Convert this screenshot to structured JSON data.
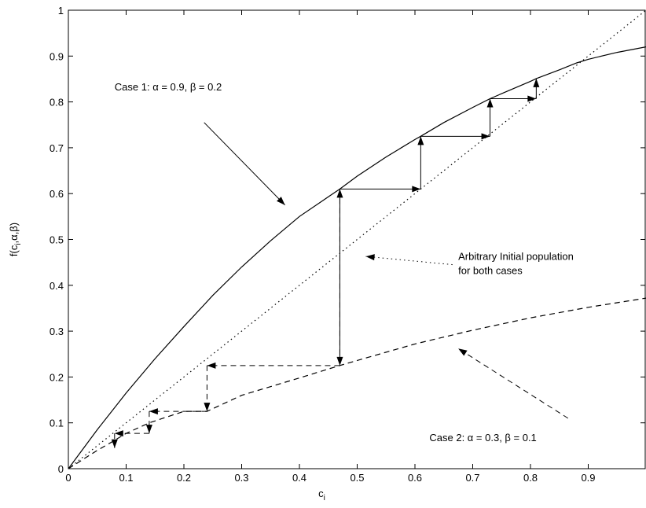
{
  "chart_data": {
    "type": "line",
    "xlabel": "c",
    "xlabel_sub": "i",
    "ylabel": "f(c",
    "ylabel_sub": "i",
    "ylabel_rest": ",α,β)",
    "xlim": [
      0,
      1
    ],
    "ylim": [
      0,
      1
    ],
    "x_ticks": [
      0,
      0.1,
      0.2,
      0.3,
      0.4,
      0.5,
      0.6,
      0.7,
      0.8,
      0.9
    ],
    "x_tick_labels": [
      "0",
      "0.1",
      "0.2",
      "0.3",
      "0.4",
      "0.5",
      "0.6",
      "0.7",
      "0.8",
      "0.9"
    ],
    "y_ticks": [
      0,
      0.1,
      0.2,
      0.3,
      0.4,
      0.5,
      0.6,
      0.7,
      0.8,
      0.9,
      1
    ],
    "y_tick_labels": [
      "0",
      "0.1",
      "0.2",
      "0.3",
      "0.4",
      "0.5",
      "0.6",
      "0.7",
      "0.8",
      "0.9",
      "1"
    ],
    "grid": false,
    "series": [
      {
        "style": "solid",
        "x": [
          0,
          0.05,
          0.1,
          0.15,
          0.2,
          0.25,
          0.3,
          0.35,
          0.4,
          0.45,
          0.47,
          0.5,
          0.55,
          0.6,
          0.61,
          0.65,
          0.7,
          0.73,
          0.75,
          0.8,
          0.81,
          0.85,
          0.88,
          0.9,
          0.95,
          1.0
        ],
        "y": [
          0,
          0.085,
          0.165,
          0.24,
          0.31,
          0.378,
          0.44,
          0.497,
          0.55,
          0.593,
          0.61,
          0.638,
          0.68,
          0.718,
          0.725,
          0.755,
          0.788,
          0.807,
          0.818,
          0.845,
          0.851,
          0.87,
          0.885,
          0.893,
          0.908,
          0.92
        ]
      },
      {
        "style": "dashed",
        "x": [
          0,
          0.05,
          0.075,
          0.1,
          0.14,
          0.2,
          0.24,
          0.3,
          0.4,
          0.47,
          0.5,
          0.6,
          0.7,
          0.8,
          0.9,
          1.0
        ],
        "y": [
          0,
          0.04,
          0.058,
          0.077,
          0.1,
          0.125,
          0.125,
          0.16,
          0.198,
          0.225,
          0.236,
          0.272,
          0.302,
          0.329,
          0.352,
          0.372
        ]
      },
      {
        "style": "dotted",
        "x": [
          0,
          1
        ],
        "y": [
          0,
          1
        ]
      }
    ],
    "cobweb_case1": [
      {
        "x1": 0.47,
        "y1": 0.225,
        "x2": 0.47,
        "y2": 0.61
      },
      {
        "x1": 0.47,
        "y1": 0.61,
        "x2": 0.61,
        "y2": 0.61
      },
      {
        "x1": 0.61,
        "y1": 0.61,
        "x2": 0.61,
        "y2": 0.725
      },
      {
        "x1": 0.61,
        "y1": 0.725,
        "x2": 0.73,
        "y2": 0.725
      },
      {
        "x1": 0.73,
        "y1": 0.725,
        "x2": 0.73,
        "y2": 0.807
      },
      {
        "x1": 0.73,
        "y1": 0.807,
        "x2": 0.81,
        "y2": 0.807
      },
      {
        "x1": 0.81,
        "y1": 0.807,
        "x2": 0.81,
        "y2": 0.851
      }
    ],
    "cobweb_case2": [
      {
        "x1": 0.47,
        "y1": 0.61,
        "x2": 0.47,
        "y2": 0.225
      },
      {
        "x1": 0.47,
        "y1": 0.225,
        "x2": 0.24,
        "y2": 0.225
      },
      {
        "x1": 0.24,
        "y1": 0.225,
        "x2": 0.24,
        "y2": 0.125
      },
      {
        "x1": 0.24,
        "y1": 0.125,
        "x2": 0.14,
        "y2": 0.125
      },
      {
        "x1": 0.14,
        "y1": 0.125,
        "x2": 0.14,
        "y2": 0.077
      },
      {
        "x1": 0.14,
        "y1": 0.077,
        "x2": 0.08,
        "y2": 0.077
      },
      {
        "x1": 0.08,
        "y1": 0.077,
        "x2": 0.08,
        "y2": 0.045
      }
    ],
    "annotations": [
      {
        "text": "Case 1: α = 0.9, β = 0.2",
        "x": 0.08,
        "y": 0.825,
        "anchor": "start",
        "line": {
          "x1": 0.235,
          "y1": 0.755,
          "x2": 0.375,
          "y2": 0.575,
          "style": "solid"
        }
      },
      {
        "text": "Arbitrary Initial population",
        "text2": "for both cases",
        "x": 0.675,
        "y": 0.455,
        "anchor": "start",
        "line": {
          "x1": 0.665,
          "y1": 0.445,
          "x2": 0.515,
          "y2": 0.463,
          "style": "dotted"
        }
      },
      {
        "text": "Case 2: α = 0.3, β = 0.1",
        "x": 0.625,
        "y": 0.06,
        "anchor": "start",
        "line": {
          "x1": 0.865,
          "y1": 0.11,
          "x2": 0.675,
          "y2": 0.262,
          "style": "dashed"
        }
      }
    ]
  }
}
